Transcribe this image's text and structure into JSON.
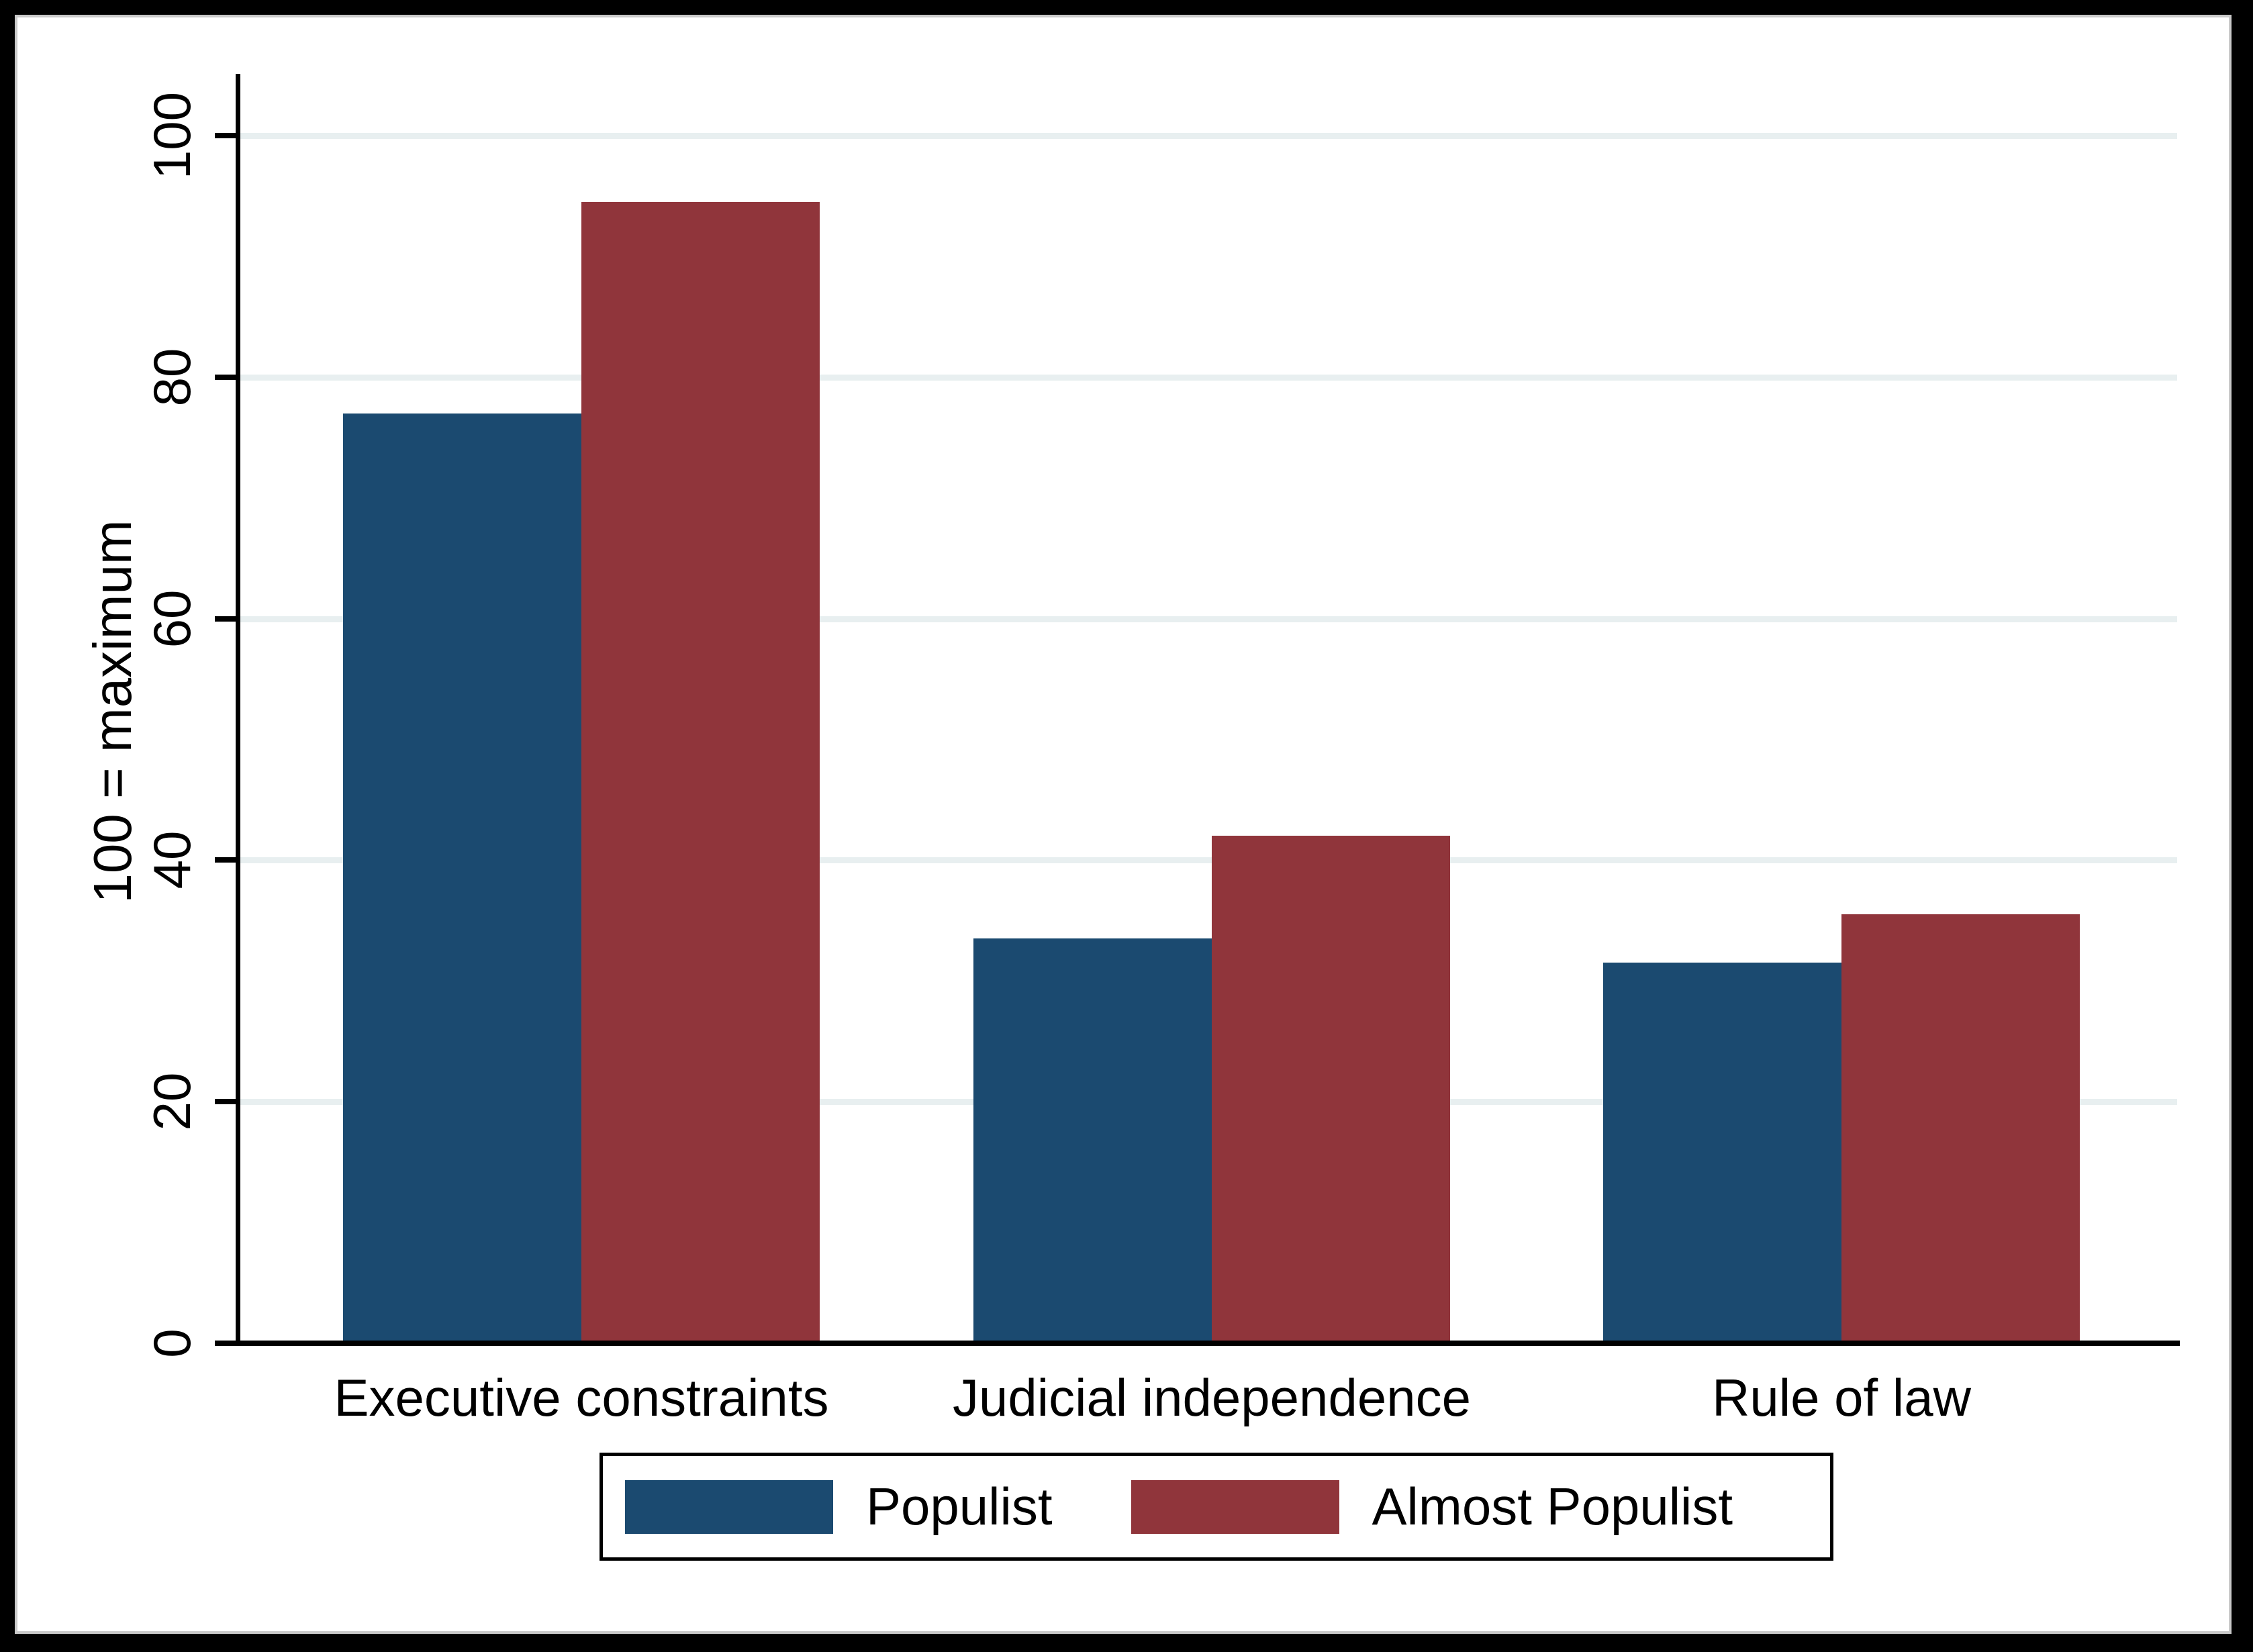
{
  "chart_data": {
    "type": "bar",
    "title": "",
    "categories": [
      "Executive constraints",
      "Judicial independence",
      "Rule of law"
    ],
    "series": [
      {
        "name": "Populist",
        "color": "#1b4a70",
        "values": [
          77,
          33.5,
          31.5
        ]
      },
      {
        "name": "Almost Populist",
        "color": "#90353b",
        "values": [
          94.5,
          42,
          35.5
        ]
      }
    ],
    "xlabel": "",
    "ylabel": "100 = maximum",
    "ylim": [
      0,
      100
    ],
    "yticks": [
      0,
      20,
      40,
      60,
      80,
      100
    ],
    "grid": true,
    "gridline_color": "#e8eff0",
    "plot_background": "#ffffff",
    "axis_color": "#000000",
    "legend_position": "bottom-center"
  }
}
